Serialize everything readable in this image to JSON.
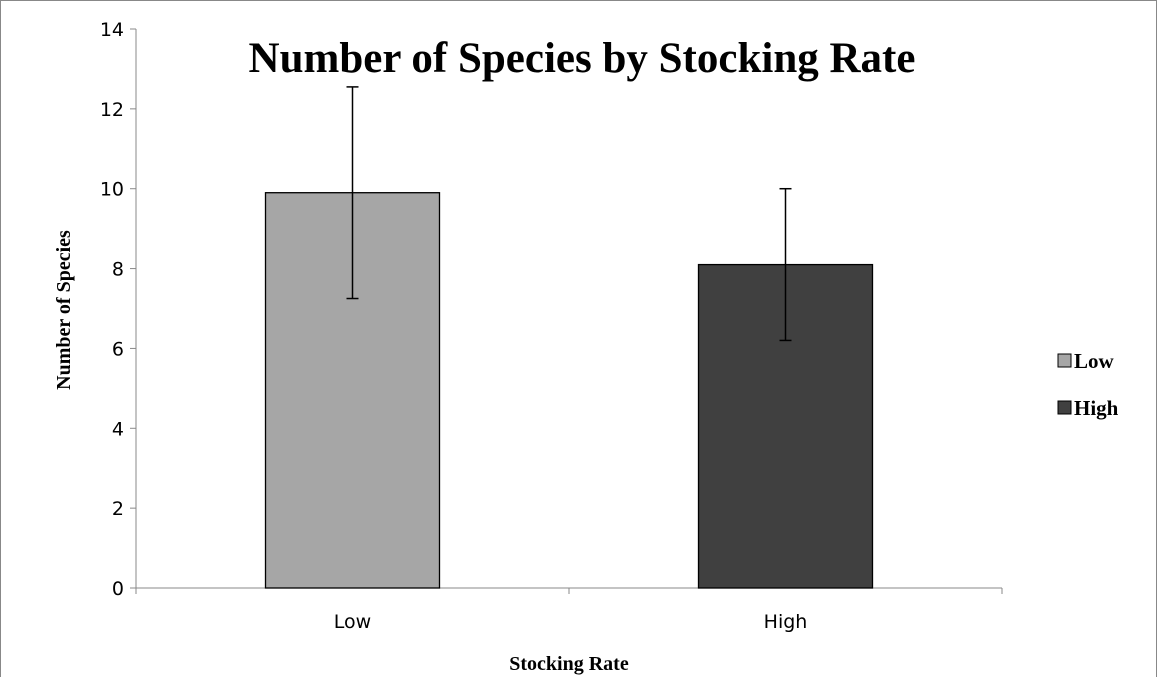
{
  "chart_data": {
    "type": "bar",
    "title": "Number of Species by Stocking Rate",
    "xlabel": "Stocking Rate",
    "ylabel": "Number of Species",
    "categories": [
      "Low",
      "High"
    ],
    "values": [
      9.9,
      8.1
    ],
    "error_bars": [
      2.65,
      1.9
    ],
    "ylim": [
      0,
      14
    ],
    "yticks": [
      0,
      2,
      4,
      6,
      8,
      10,
      12,
      14
    ],
    "ytick_labels": [
      "0",
      "2",
      "4",
      "6",
      "8",
      "10",
      "12",
      "14"
    ],
    "bar_colors": [
      "#a6a6a6",
      "#404040"
    ],
    "grid": false,
    "legend": {
      "position": "right",
      "entries": [
        {
          "label": "Low",
          "color": "#a6a6a6"
        },
        {
          "label": "High",
          "color": "#404040"
        }
      ]
    }
  }
}
